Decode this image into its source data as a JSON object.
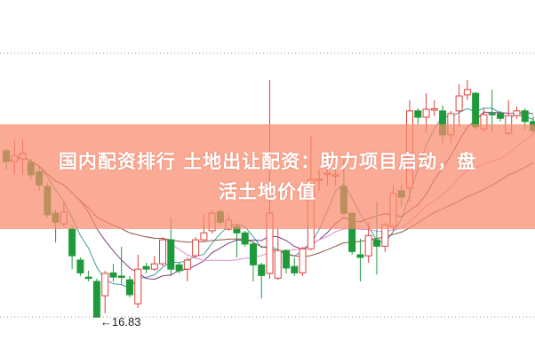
{
  "headline": {
    "line1": "国内配资排行 土地出让配资：助力项目启动，盘",
    "line2": "活土地价值"
  },
  "chart_data": {
    "type": "candlestick",
    "ylim": [
      16.1,
      22.78
    ],
    "gridlines": [
      21.78,
      16.83
    ],
    "grid": true,
    "colors": {
      "up": "#e0403a",
      "down": "#1e9a3a",
      "grid": "#9a9a9a",
      "ma5": "#3f9aa0",
      "ma10": "#7a3a80",
      "ma20": "#e58ad0",
      "ma30": "#8b5a40"
    },
    "moving_averages": [
      5,
      10,
      20,
      30
    ],
    "annotation": {
      "text": "←16.83",
      "price": 16.83
    },
    "candles": [
      [
        19.95,
        20.0,
        19.6,
        19.75
      ],
      [
        19.75,
        20.15,
        19.5,
        19.86
      ],
      [
        19.8,
        20.16,
        19.5,
        19.9
      ],
      [
        19.73,
        19.8,
        19.4,
        19.5
      ],
      [
        19.56,
        19.65,
        19.2,
        19.31
      ],
      [
        19.28,
        19.35,
        18.7,
        18.75
      ],
      [
        18.78,
        18.85,
        18.23,
        18.61
      ],
      [
        18.58,
        18.98,
        18.53,
        18.8
      ],
      [
        18.48,
        18.55,
        17.73,
        17.98
      ],
      [
        17.9,
        17.95,
        17.6,
        17.66
      ],
      [
        17.58,
        17.7,
        17.5,
        17.56
      ],
      [
        17.5,
        17.55,
        16.83,
        16.83
      ],
      [
        17.23,
        17.7,
        16.9,
        17.65
      ],
      [
        17.66,
        17.83,
        17.5,
        17.58
      ],
      [
        17.6,
        18.15,
        17.45,
        17.58
      ],
      [
        17.53,
        17.6,
        17.2,
        17.25
      ],
      [
        17.08,
        18.0,
        17.0,
        17.73
      ],
      [
        17.78,
        17.85,
        17.65,
        17.73
      ],
      [
        17.73,
        17.98,
        17.7,
        17.83
      ],
      [
        17.83,
        18.33,
        17.78,
        18.28
      ],
      [
        18.28,
        18.7,
        17.6,
        17.73
      ],
      [
        17.81,
        17.85,
        17.65,
        17.7
      ],
      [
        17.73,
        17.95,
        17.5,
        17.9
      ],
      [
        17.98,
        18.33,
        17.93,
        18.28
      ],
      [
        18.28,
        18.75,
        18.25,
        18.41
      ],
      [
        18.45,
        18.83,
        18.4,
        18.78
      ],
      [
        18.81,
        18.85,
        18.55,
        18.61
      ],
      [
        18.48,
        18.75,
        18.45,
        18.65
      ],
      [
        18.53,
        18.58,
        17.95,
        18.41
      ],
      [
        18.41,
        18.45,
        18.15,
        18.2
      ],
      [
        18.2,
        18.25,
        17.5,
        17.81
      ],
      [
        17.81,
        17.85,
        17.18,
        17.61
      ],
      [
        17.65,
        21.28,
        17.55,
        18.78
      ],
      [
        17.56,
        18.5,
        17.53,
        18.08
      ],
      [
        18.08,
        18.1,
        17.65,
        17.75
      ],
      [
        17.78,
        17.95,
        17.6,
        17.66
      ],
      [
        17.66,
        18.15,
        17.6,
        18.11
      ],
      [
        18.11,
        20.23,
        18.08,
        19.41
      ],
      [
        19.4,
        19.6,
        19.2,
        19.42
      ],
      [
        19.52,
        19.7,
        19.3,
        19.53
      ],
      [
        19.5,
        19.65,
        19.3,
        19.5
      ],
      [
        19.28,
        19.78,
        18.75,
        18.78
      ],
      [
        18.78,
        18.8,
        18.0,
        18.06
      ],
      [
        18.0,
        18.3,
        17.5,
        17.95
      ],
      [
        17.98,
        18.6,
        17.85,
        18.36
      ],
      [
        18.28,
        19.0,
        17.63,
        18.16
      ],
      [
        18.16,
        18.6,
        18.05,
        18.56
      ],
      [
        18.53,
        19.3,
        18.45,
        19.15
      ],
      [
        19.2,
        19.3,
        18.9,
        19.08
      ],
      [
        19.25,
        20.9,
        18.98,
        20.7
      ],
      [
        20.7,
        20.75,
        20.45,
        20.58
      ],
      [
        20.58,
        21.03,
        20.3,
        20.73
      ],
      [
        20.73,
        20.9,
        20.6,
        20.74
      ],
      [
        20.7,
        20.8,
        20.1,
        20.25
      ],
      [
        20.25,
        20.7,
        20.1,
        20.65
      ],
      [
        20.7,
        21.2,
        20.4,
        20.98
      ],
      [
        21.0,
        21.28,
        20.9,
        21.1
      ],
      [
        21.03,
        21.05,
        20.35,
        20.4
      ],
      [
        20.36,
        20.75,
        20.3,
        20.63
      ],
      [
        20.65,
        21.1,
        20.3,
        20.63
      ],
      [
        20.65,
        20.7,
        20.5,
        20.56
      ],
      [
        20.28,
        20.9,
        20.25,
        20.61
      ],
      [
        20.61,
        20.78,
        20.55,
        20.7
      ],
      [
        20.7,
        20.75,
        20.35,
        20.5
      ],
      [
        20.5,
        20.6,
        20.25,
        20.33
      ]
    ]
  }
}
